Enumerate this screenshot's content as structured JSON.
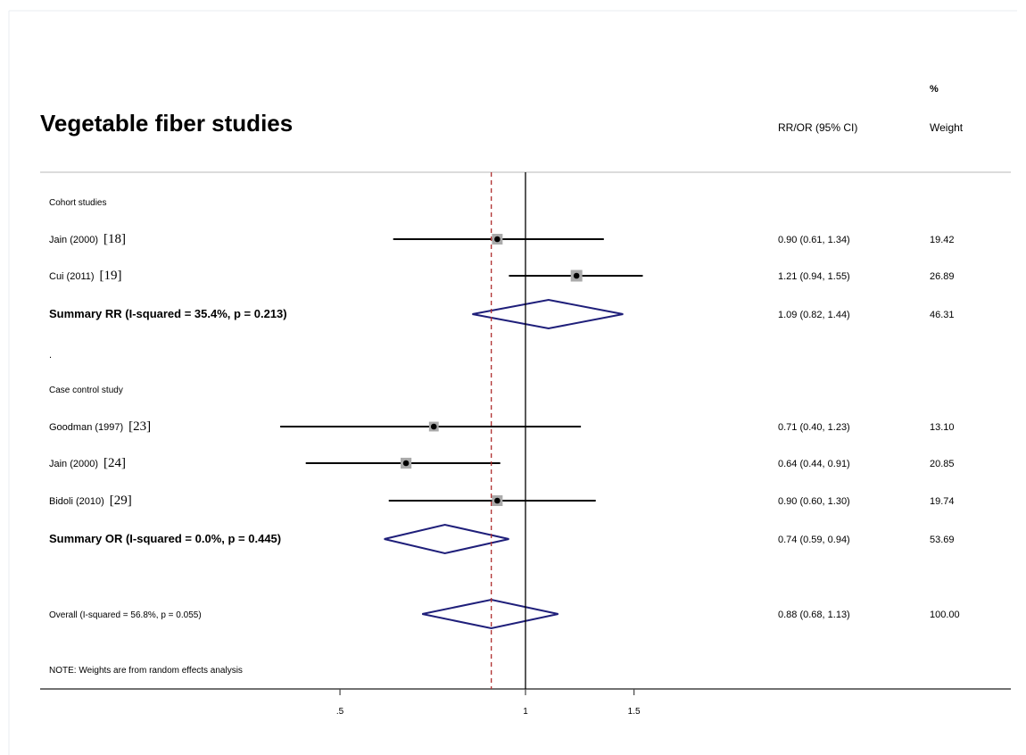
{
  "chart_data": {
    "type": "forest",
    "title": "Vegetable fiber studies",
    "headers": {
      "estimate": "RR/OR (95% CI)",
      "weight_top": "%",
      "weight_bottom": "Weight"
    },
    "x_axis": {
      "ticks": [
        0.5,
        1,
        1.5
      ],
      "tick_labels": [
        ".5",
        "1",
        "1.5"
      ],
      "scale": "log",
      "null_line": 1,
      "overall_line": 0.88
    },
    "rows": [
      {
        "type": "header",
        "label": "Cohort studies"
      },
      {
        "type": "study",
        "label": "Jain  (2000)",
        "ref": "[18]",
        "est": 0.9,
        "lo": 0.61,
        "hi": 1.34,
        "ci_text": "0.90 (0.61, 1.34)",
        "weight": "19.42"
      },
      {
        "type": "study",
        "label": "Cui  (2011)",
        "ref": "[19]",
        "est": 1.21,
        "lo": 0.94,
        "hi": 1.55,
        "ci_text": "1.21 (0.94, 1.55)",
        "weight": "26.89"
      },
      {
        "type": "summary",
        "label": "Summary RR (I-squared = 35.4%, p = 0.213)",
        "est": 1.09,
        "lo": 0.82,
        "hi": 1.44,
        "ci_text": "1.09 (0.82, 1.44)",
        "weight": "46.31"
      },
      {
        "type": "spacer",
        "label": "."
      },
      {
        "type": "header",
        "label": "Case control study"
      },
      {
        "type": "study",
        "label": "Goodman  (1997)",
        "ref": "[23]",
        "est": 0.71,
        "lo": 0.4,
        "hi": 1.23,
        "ci_text": "0.71 (0.40, 1.23)",
        "weight": "13.10"
      },
      {
        "type": "study",
        "label": "Jain  (2000)",
        "ref": "[24]",
        "est": 0.64,
        "lo": 0.44,
        "hi": 0.91,
        "ci_text": "0.64 (0.44, 0.91)",
        "weight": "20.85"
      },
      {
        "type": "study",
        "label": "Bidoli (2010)",
        "ref": "[29]",
        "est": 0.9,
        "lo": 0.6,
        "hi": 1.3,
        "ci_text": "0.90 (0.60, 1.30)",
        "weight": "19.74"
      },
      {
        "type": "summary",
        "label": "Summary OR (I-squared = 0.0%, p = 0.445)",
        "est": 0.74,
        "lo": 0.59,
        "hi": 0.94,
        "ci_text": "0.74 (0.59, 0.94)",
        "weight": "53.69"
      },
      {
        "type": "overall",
        "label": "Overall  (I-squared = 56.8%, p = 0.055)",
        "est": 0.88,
        "lo": 0.68,
        "hi": 1.13,
        "ci_text": "0.88 (0.68, 1.13)",
        "weight": "100.00"
      },
      {
        "type": "note",
        "label": "NOTE: Weights are from random effects analysis"
      }
    ],
    "colors": {
      "diamond": "#1f1f7a",
      "ref_line": "#b03030",
      "box": "#aaaaaa",
      "text": "#000000"
    }
  }
}
